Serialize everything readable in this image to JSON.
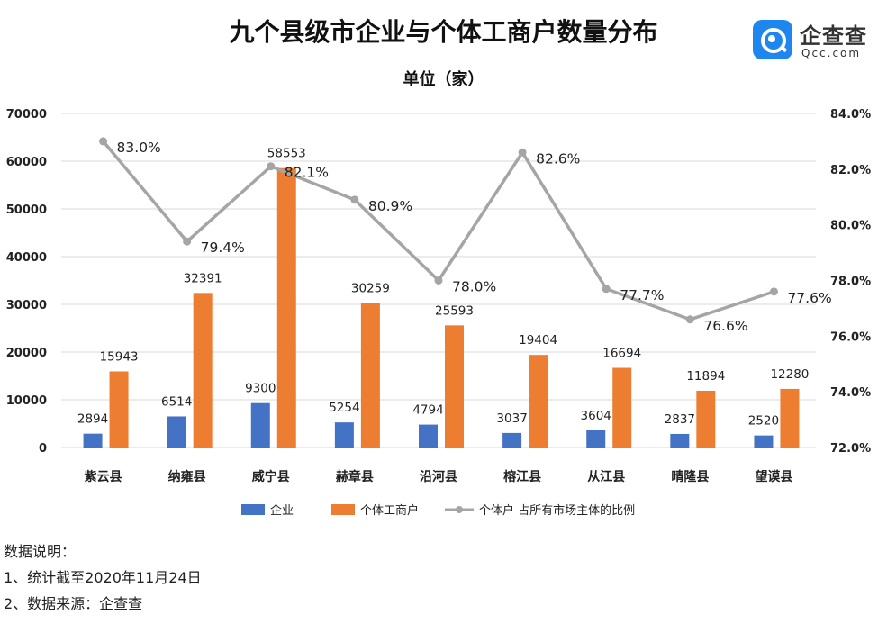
{
  "header": {
    "title": "九个县级市企业与个体工商户数量分布",
    "subtitle": "单位（家）"
  },
  "logo": {
    "name_cn": "企查查",
    "name_en": "Qcc.com"
  },
  "chart_data": {
    "type": "bar",
    "categories": [
      "紫云县",
      "纳雍县",
      "威宁县",
      "赫章县",
      "沿河县",
      "榕江县",
      "从江县",
      "晴隆县",
      "望谟县"
    ],
    "series": [
      {
        "name": "企业",
        "type": "bar",
        "axis": "left",
        "color": "#4472c4",
        "values": [
          2894,
          6514,
          9300,
          5254,
          4794,
          3037,
          3604,
          2837,
          2520
        ],
        "labels": [
          "2894",
          "6514",
          "9300",
          "5254",
          "4794",
          "3037",
          "3604",
          "2837",
          "2520"
        ]
      },
      {
        "name": "个体工商户",
        "type": "bar",
        "axis": "left",
        "color": "#ed7d31",
        "values": [
          15943,
          32391,
          58553,
          30259,
          25593,
          19404,
          16694,
          11894,
          12280
        ],
        "labels": [
          "15943",
          "32391",
          "58553",
          "30259",
          "25593",
          "19404",
          "16694",
          "11894",
          "12280"
        ]
      },
      {
        "name": "个体户 占所有市场主体的比例",
        "type": "line",
        "axis": "right",
        "color": "#a5a5a5",
        "values": [
          83.0,
          79.4,
          82.1,
          80.9,
          78.0,
          82.6,
          77.7,
          76.6,
          77.6
        ],
        "labels": [
          "83.0%",
          "79.4%",
          "82.1%",
          "80.9%",
          "78.0%",
          "82.6%",
          "77.7%",
          "76.6%",
          "77.6%"
        ]
      }
    ],
    "y_left": {
      "min": 0,
      "max": 70000,
      "ticks": [
        0,
        10000,
        20000,
        30000,
        40000,
        50000,
        60000,
        70000
      ],
      "tick_labels": [
        "0",
        "10000",
        "20000",
        "30000",
        "40000",
        "50000",
        "60000",
        "70000"
      ]
    },
    "y_right": {
      "min": 72,
      "max": 84,
      "ticks": [
        72,
        74,
        76,
        78,
        80,
        82,
        84
      ],
      "tick_labels": [
        "72.0%",
        "74.0%",
        "76.0%",
        "78.0%",
        "80.0%",
        "82.0%",
        "84.0%"
      ]
    },
    "grid": true,
    "legend_position": "bottom"
  },
  "notes": {
    "heading": "数据说明：",
    "items": [
      "1、统计截至2020年11月24日",
      "2、数据来源：企查查"
    ]
  }
}
